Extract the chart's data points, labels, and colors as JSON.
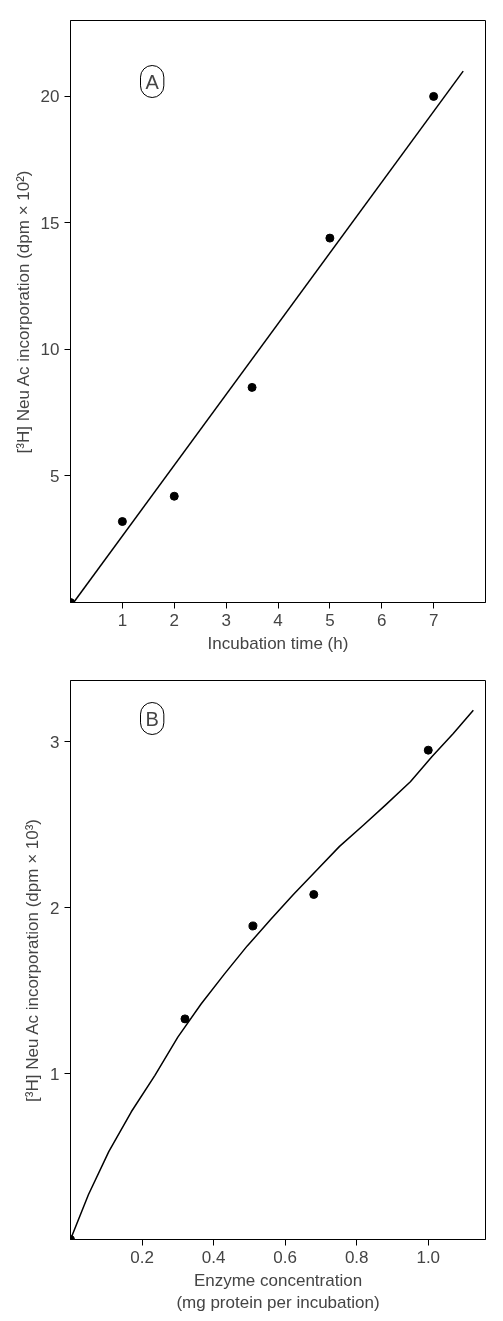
{
  "chart_data": [
    {
      "type": "scatter",
      "xlabel": "Incubation time (h)",
      "ylabel": "[³H] Neu Ac incorporation (dpm × 10²)",
      "annotations": [
        "A"
      ],
      "xlim": [
        0,
        8
      ],
      "ylim": [
        0,
        23
      ],
      "xticks": [
        1,
        2,
        3,
        4,
        5,
        6,
        7
      ],
      "yticks": [
        5,
        10,
        15,
        20
      ],
      "grid": false,
      "series": [
        {
          "color": "#000000",
          "marker": "circle",
          "x": [
            0,
            1,
            2,
            3.5,
            5,
            7
          ],
          "values": [
            0,
            3.2,
            4.2,
            8.5,
            14.4,
            20.0
          ]
        },
        {
          "type": "line",
          "color": "#000000",
          "x": [
            0.06,
            7.57
          ],
          "values": [
            0,
            21.0
          ]
        }
      ]
    },
    {
      "type": "scatter",
      "xlabel": "Enzyme concentration\n(mg protein per incubation)",
      "ylabel": "[³H] Neu Ac incorporation (dpm × 10³)",
      "annotations": [
        "B"
      ],
      "xlim": [
        0,
        1.16
      ],
      "ylim": [
        0,
        3.37
      ],
      "xticks": [
        {
          "value": 0.2,
          "label": "0.2"
        },
        {
          "value": 0.4,
          "label": "0.4"
        },
        {
          "value": 0.6,
          "label": "0.6"
        },
        {
          "value": 0.8,
          "label": "0.8"
        },
        {
          "value": 1.0,
          "label": "1.0"
        }
      ],
      "yticks": [
        1,
        2,
        3
      ],
      "grid": false,
      "series": [
        {
          "color": "#000000",
          "marker": "circle",
          "x": [
            0,
            0.32,
            0.51,
            0.68,
            1.0
          ],
          "values": [
            0,
            1.33,
            1.89,
            2.08,
            2.95
          ]
        },
        {
          "type": "line",
          "color": "#000000",
          "x": [
            0,
            0.05,
            0.107,
            0.17,
            0.236,
            0.3,
            0.365,
            0.43,
            0.494,
            0.56,
            0.623,
            0.69,
            0.752,
            0.82,
            0.881,
            0.95,
            1.01,
            1.07,
            1.126
          ],
          "values": [
            0,
            0.27,
            0.53,
            0.77,
            0.99,
            1.22,
            1.42,
            1.6,
            1.77,
            1.93,
            2.08,
            2.23,
            2.37,
            2.5,
            2.62,
            2.76,
            2.91,
            3.05,
            3.19
          ]
        }
      ]
    }
  ]
}
